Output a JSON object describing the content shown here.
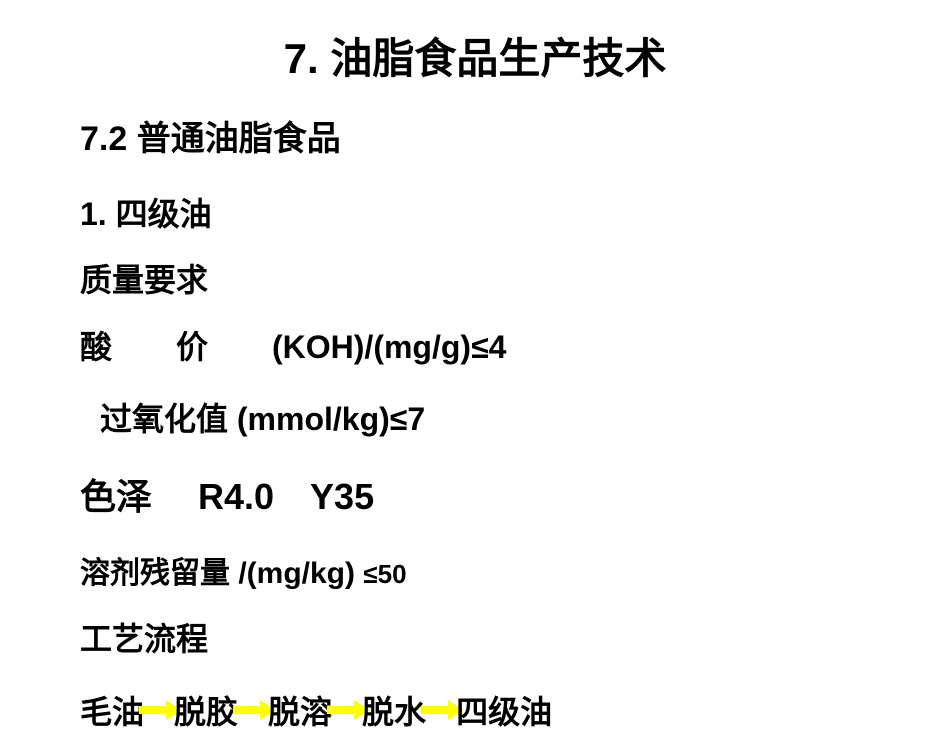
{
  "title": "7. 油脂食品生产技术",
  "subtitle": "7.2  普通油脂食品",
  "section": {
    "heading": "1. 四级油",
    "label_quality": "质量要求",
    "acid_line": "酸　　价　　(KOH)/(mg/g)≤4",
    "peroxide_line": "过氧化值 (mmol/kg)≤7",
    "color_line": "色泽　 R4.0　Y35",
    "solvent_label": "溶剂残留量 /(mg/kg) ",
    "solvent_value": "≤50",
    "process_label": "工艺流程",
    "flow": {
      "step1": "毛油",
      "step2": "脱胶",
      "step3": "脱溶",
      "step4": "脱水",
      "step5": "四级油"
    }
  },
  "colors": {
    "text": "#000000",
    "background": "#ffffff",
    "arrow": "#ffff00"
  }
}
